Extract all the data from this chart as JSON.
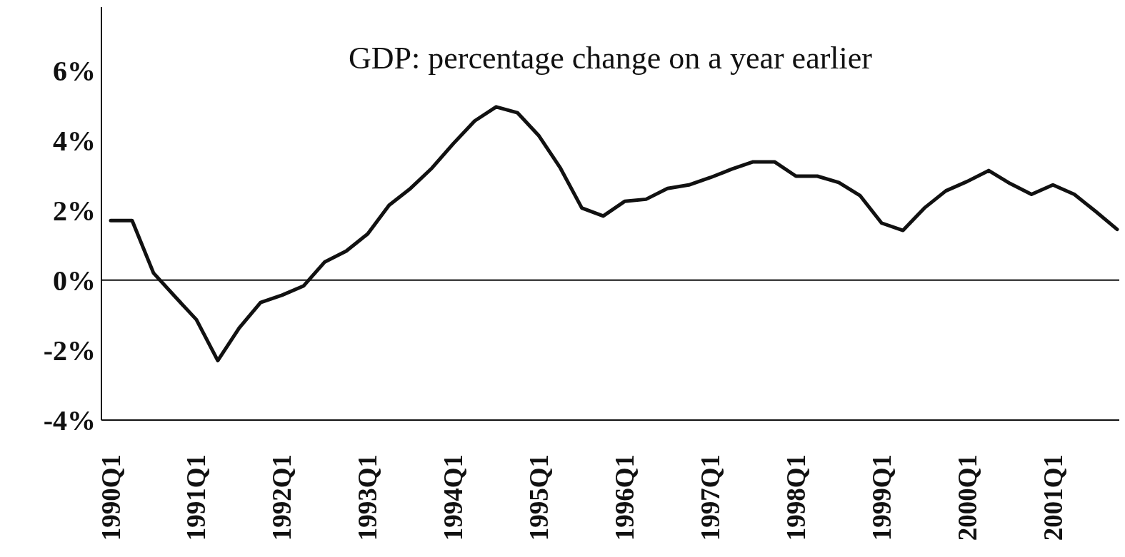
{
  "chart_data": {
    "type": "line",
    "title": "GDP: percentage change on a year earlier",
    "categories": [
      "1990Q1",
      null,
      null,
      null,
      "1991Q1",
      null,
      null,
      null,
      "1992Q1",
      null,
      null,
      null,
      "1993Q1",
      null,
      null,
      null,
      "1994Q1",
      null,
      null,
      null,
      "1995Q1",
      null,
      null,
      null,
      "1996Q1",
      null,
      null,
      null,
      "1997Q1",
      null,
      null,
      null,
      "1998Q1",
      null,
      null,
      null,
      "1999Q1",
      null,
      null,
      null,
      "2000Q1",
      null,
      null,
      null,
      "2001Q1",
      null,
      null,
      null
    ],
    "series": [
      {
        "color": "#111111",
        "values": [
          1.7,
          1.7,
          0.2,
          -0.47,
          -1.13,
          -2.3,
          -1.37,
          -0.64,
          -0.43,
          -0.17,
          0.52,
          0.83,
          1.32,
          2.14,
          2.62,
          3.2,
          3.9,
          4.55,
          4.95,
          4.78,
          4.12,
          3.2,
          2.06,
          1.83,
          2.25,
          2.31,
          2.62,
          2.72,
          2.93,
          3.17,
          3.38,
          3.38,
          2.97,
          2.97,
          2.79,
          2.41,
          1.63,
          1.42,
          2.06,
          2.55,
          2.82,
          3.13,
          2.76,
          2.45,
          2.72,
          2.45,
          1.96,
          1.45
        ]
      }
    ],
    "ylim": [
      -4,
      7.8
    ],
    "yticks": [
      {
        "value": -4,
        "label": "-4%"
      },
      {
        "value": -2,
        "label": "-2%"
      },
      {
        "value": 0,
        "label": "0%"
      },
      {
        "value": 2,
        "label": "2%"
      },
      {
        "value": 4,
        "label": "4%"
      },
      {
        "value": 6,
        "label": "6%"
      }
    ],
    "ref_lines": [
      {
        "axis": "y",
        "value": 0,
        "color": "#111111"
      }
    ],
    "grid": false,
    "legend": false,
    "marker": "none",
    "line_style": "solid"
  }
}
